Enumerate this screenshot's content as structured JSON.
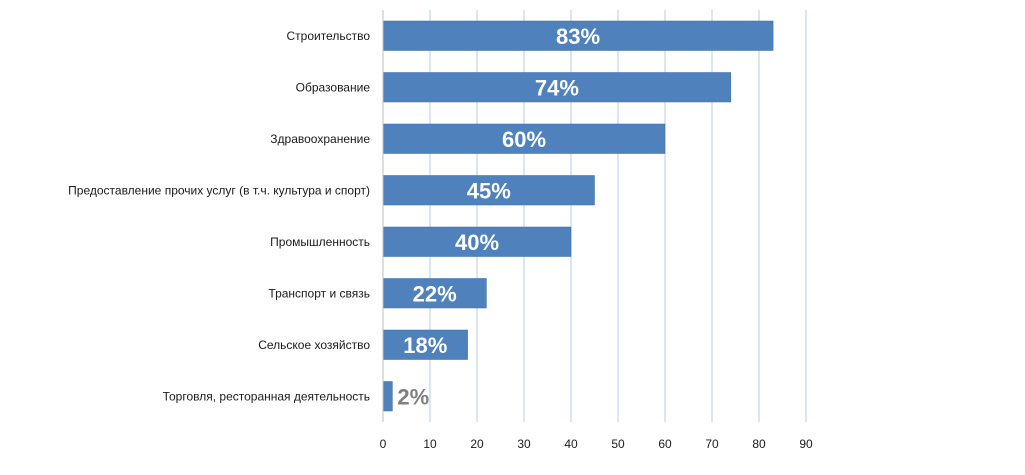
{
  "colors": {
    "bar": "#4F81BD",
    "bar_edge": "#3A6BA5",
    "gridline": "#B8CCE4",
    "axis": "#BFBFBF",
    "label_inside": "#ffffff",
    "label_outside": "#808080"
  },
  "chart_data": {
    "type": "bar",
    "orientation": "horizontal",
    "categories": [
      "Строительство",
      "Образование",
      "Здравоохранение",
      "Предоставление прочих услуг (в т.ч. культура и спорт)",
      "Промышленность",
      "Транспорт и связь",
      "Сельское хозяйство",
      "Торговля, ресторанная деятельность"
    ],
    "values": [
      83,
      74,
      60,
      45,
      40,
      22,
      18,
      2
    ],
    "data_labels": [
      "83%",
      "74%",
      "60%",
      "45%",
      "40%",
      "22%",
      "18%",
      "2%"
    ],
    "xlim": [
      0,
      90
    ],
    "xticks": [
      "0",
      "10",
      "20",
      "30",
      "40",
      "50",
      "60",
      "70",
      "80",
      "90"
    ],
    "grid": true,
    "legend": "none",
    "title": "",
    "xlabel": "",
    "ylabel": ""
  }
}
